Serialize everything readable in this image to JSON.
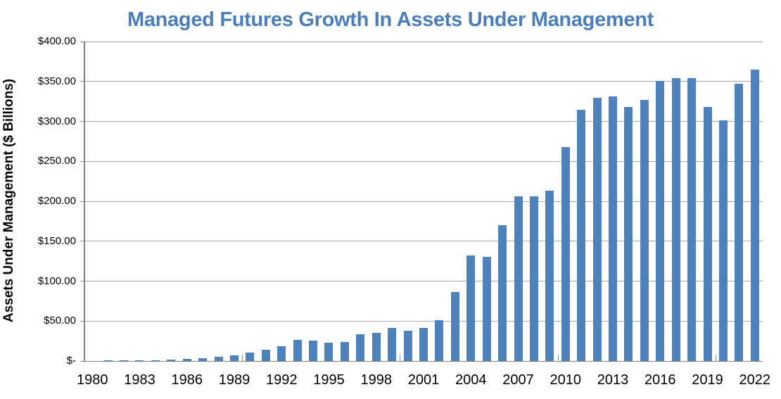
{
  "title": "Managed Futures Growth In Assets Under Management",
  "y_axis": {
    "title": "Assets Under Management ($ Billions)",
    "tick_labels_top_to_bottom": [
      "$400.00",
      "$350.00",
      "$300.00",
      "$250.00",
      "$200.00",
      "$150.00",
      "$100.00",
      "$50.00",
      "$-"
    ]
  },
  "x_axis": {
    "tick_labels": [
      "1980",
      "1983",
      "1986",
      "1989",
      "1992",
      "1995",
      "1998",
      "2001",
      "2004",
      "2007",
      "2010",
      "2013",
      "2016",
      "2019",
      "2022"
    ]
  },
  "chart_data": {
    "type": "bar",
    "title": "Managed Futures Growth In Assets Under Management",
    "xlabel": "",
    "ylabel": "Assets Under Management ($ Billions)",
    "ylim": [
      0,
      400
    ],
    "y_tick_interval": 50,
    "grid": "horizontal",
    "legend": "none",
    "categories": [
      1980,
      1981,
      1982,
      1983,
      1984,
      1985,
      1986,
      1987,
      1988,
      1989,
      1990,
      1991,
      1992,
      1993,
      1994,
      1995,
      1996,
      1997,
      1998,
      1999,
      2000,
      2001,
      2002,
      2003,
      2004,
      2005,
      2006,
      2007,
      2008,
      2009,
      2010,
      2011,
      2012,
      2013,
      2014,
      2015,
      2016,
      2017,
      2018,
      2019,
      2020,
      2021,
      2022
    ],
    "values": [
      0.3,
      0.5,
      0.6,
      0.8,
      0.9,
      1.5,
      2.4,
      3.9,
      5.5,
      7.0,
      10.5,
      14.5,
      18.7,
      26.0,
      25.5,
      22.8,
      24.0,
      33.3,
      35.2,
      41.3,
      37.9,
      41.0,
      50.9,
      86.2,
      131.9,
      130.6,
      170.0,
      206.6,
      206.4,
      213.6,
      267.6,
      314.3,
      329.6,
      331.0,
      317.8,
      327.0,
      351.0,
      354.5,
      354.5,
      318.5,
      301.0,
      347.0,
      365.0
    ]
  },
  "colors": {
    "title": "#4a7ebb",
    "bar": "#4f81bd",
    "gridline": "#a6a6a6",
    "axis_line": "#808080",
    "axis_text": "#000000",
    "background": "#ffffff"
  }
}
